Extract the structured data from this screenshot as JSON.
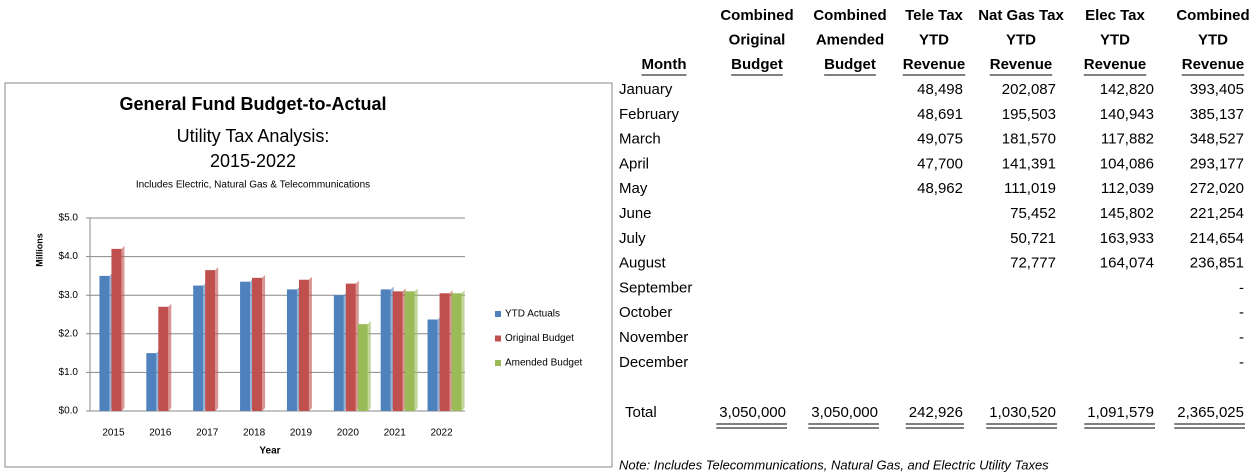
{
  "chart_data": {
    "type": "bar",
    "title": "General Fund Budget-to-Actual",
    "subtitle_lines": [
      "Utility Tax Analysis:",
      "2015-2022"
    ],
    "annotation": "Includes Electric, Natural Gas & Telecommunications",
    "ylabel": "Millions",
    "xlabel": "Year",
    "categories": [
      "2015",
      "2016",
      "2017",
      "2018",
      "2019",
      "2020",
      "2021",
      "2022"
    ],
    "series": [
      {
        "name": "YTD Actuals",
        "color": "#4f81bd",
        "values": [
          3.5,
          1.5,
          3.25,
          3.35,
          3.15,
          3.0,
          3.15,
          2.37
        ]
      },
      {
        "name": "Original Budget",
        "color": "#c0504d",
        "values": [
          4.2,
          2.7,
          3.65,
          3.45,
          3.4,
          3.3,
          3.1,
          3.05
        ]
      },
      {
        "name": "Amended Budget",
        "color": "#9bbb59",
        "values": [
          null,
          null,
          null,
          null,
          null,
          2.25,
          3.1,
          3.05
        ]
      }
    ],
    "ylim": [
      0,
      5
    ],
    "yticks": [
      {
        "value": 0,
        "label": "$0.0"
      },
      {
        "value": 1,
        "label": "$1.0"
      },
      {
        "value": 2,
        "label": "$2.0"
      },
      {
        "value": 3,
        "label": "$3.0"
      },
      {
        "value": 4,
        "label": "$4.0"
      },
      {
        "value": 5,
        "label": "$5.0"
      }
    ],
    "grid": true,
    "legend": "right"
  },
  "table": {
    "header": [
      [
        "Month"
      ],
      [
        "Combined",
        "Original",
        "Budget"
      ],
      [
        "Combined",
        "Amended",
        "Budget"
      ],
      [
        "Tele Tax",
        "YTD",
        "Revenue"
      ],
      [
        "Nat Gas Tax",
        "YTD",
        "Revenue"
      ],
      [
        "Elec Tax",
        "YTD",
        "Revenue"
      ],
      [
        "Combined",
        "YTD",
        "Revenue"
      ]
    ],
    "rows": [
      [
        "January",
        null,
        null,
        "48,498",
        "202,087",
        "142,820",
        "393,405"
      ],
      [
        "February",
        null,
        null,
        "48,691",
        "195,503",
        "140,943",
        "385,137"
      ],
      [
        "March",
        null,
        null,
        "49,075",
        "181,570",
        "117,882",
        "348,527"
      ],
      [
        "April",
        null,
        null,
        "47,700",
        "141,391",
        "104,086",
        "293,177"
      ],
      [
        "May",
        null,
        null,
        "48,962",
        "111,019",
        "112,039",
        "272,020"
      ],
      [
        "June",
        null,
        null,
        null,
        "75,452",
        "145,802",
        "221,254"
      ],
      [
        "July",
        null,
        null,
        null,
        "50,721",
        "163,933",
        "214,654"
      ],
      [
        "August",
        null,
        null,
        null,
        "72,777",
        "164,074",
        "236,851"
      ],
      [
        "September",
        null,
        null,
        null,
        null,
        null,
        "-"
      ],
      [
        "October",
        null,
        null,
        null,
        null,
        null,
        "-"
      ],
      [
        "November",
        null,
        null,
        null,
        null,
        null,
        "-"
      ],
      [
        "December",
        null,
        null,
        null,
        null,
        null,
        "-"
      ]
    ],
    "total": [
      "Total",
      "3,050,000",
      "3,050,000",
      "242,926",
      "1,030,520",
      "1,091,579",
      "2,365,025"
    ],
    "note": "Note: Includes Telecommunications, Natural Gas, and Electric Utility Taxes"
  }
}
